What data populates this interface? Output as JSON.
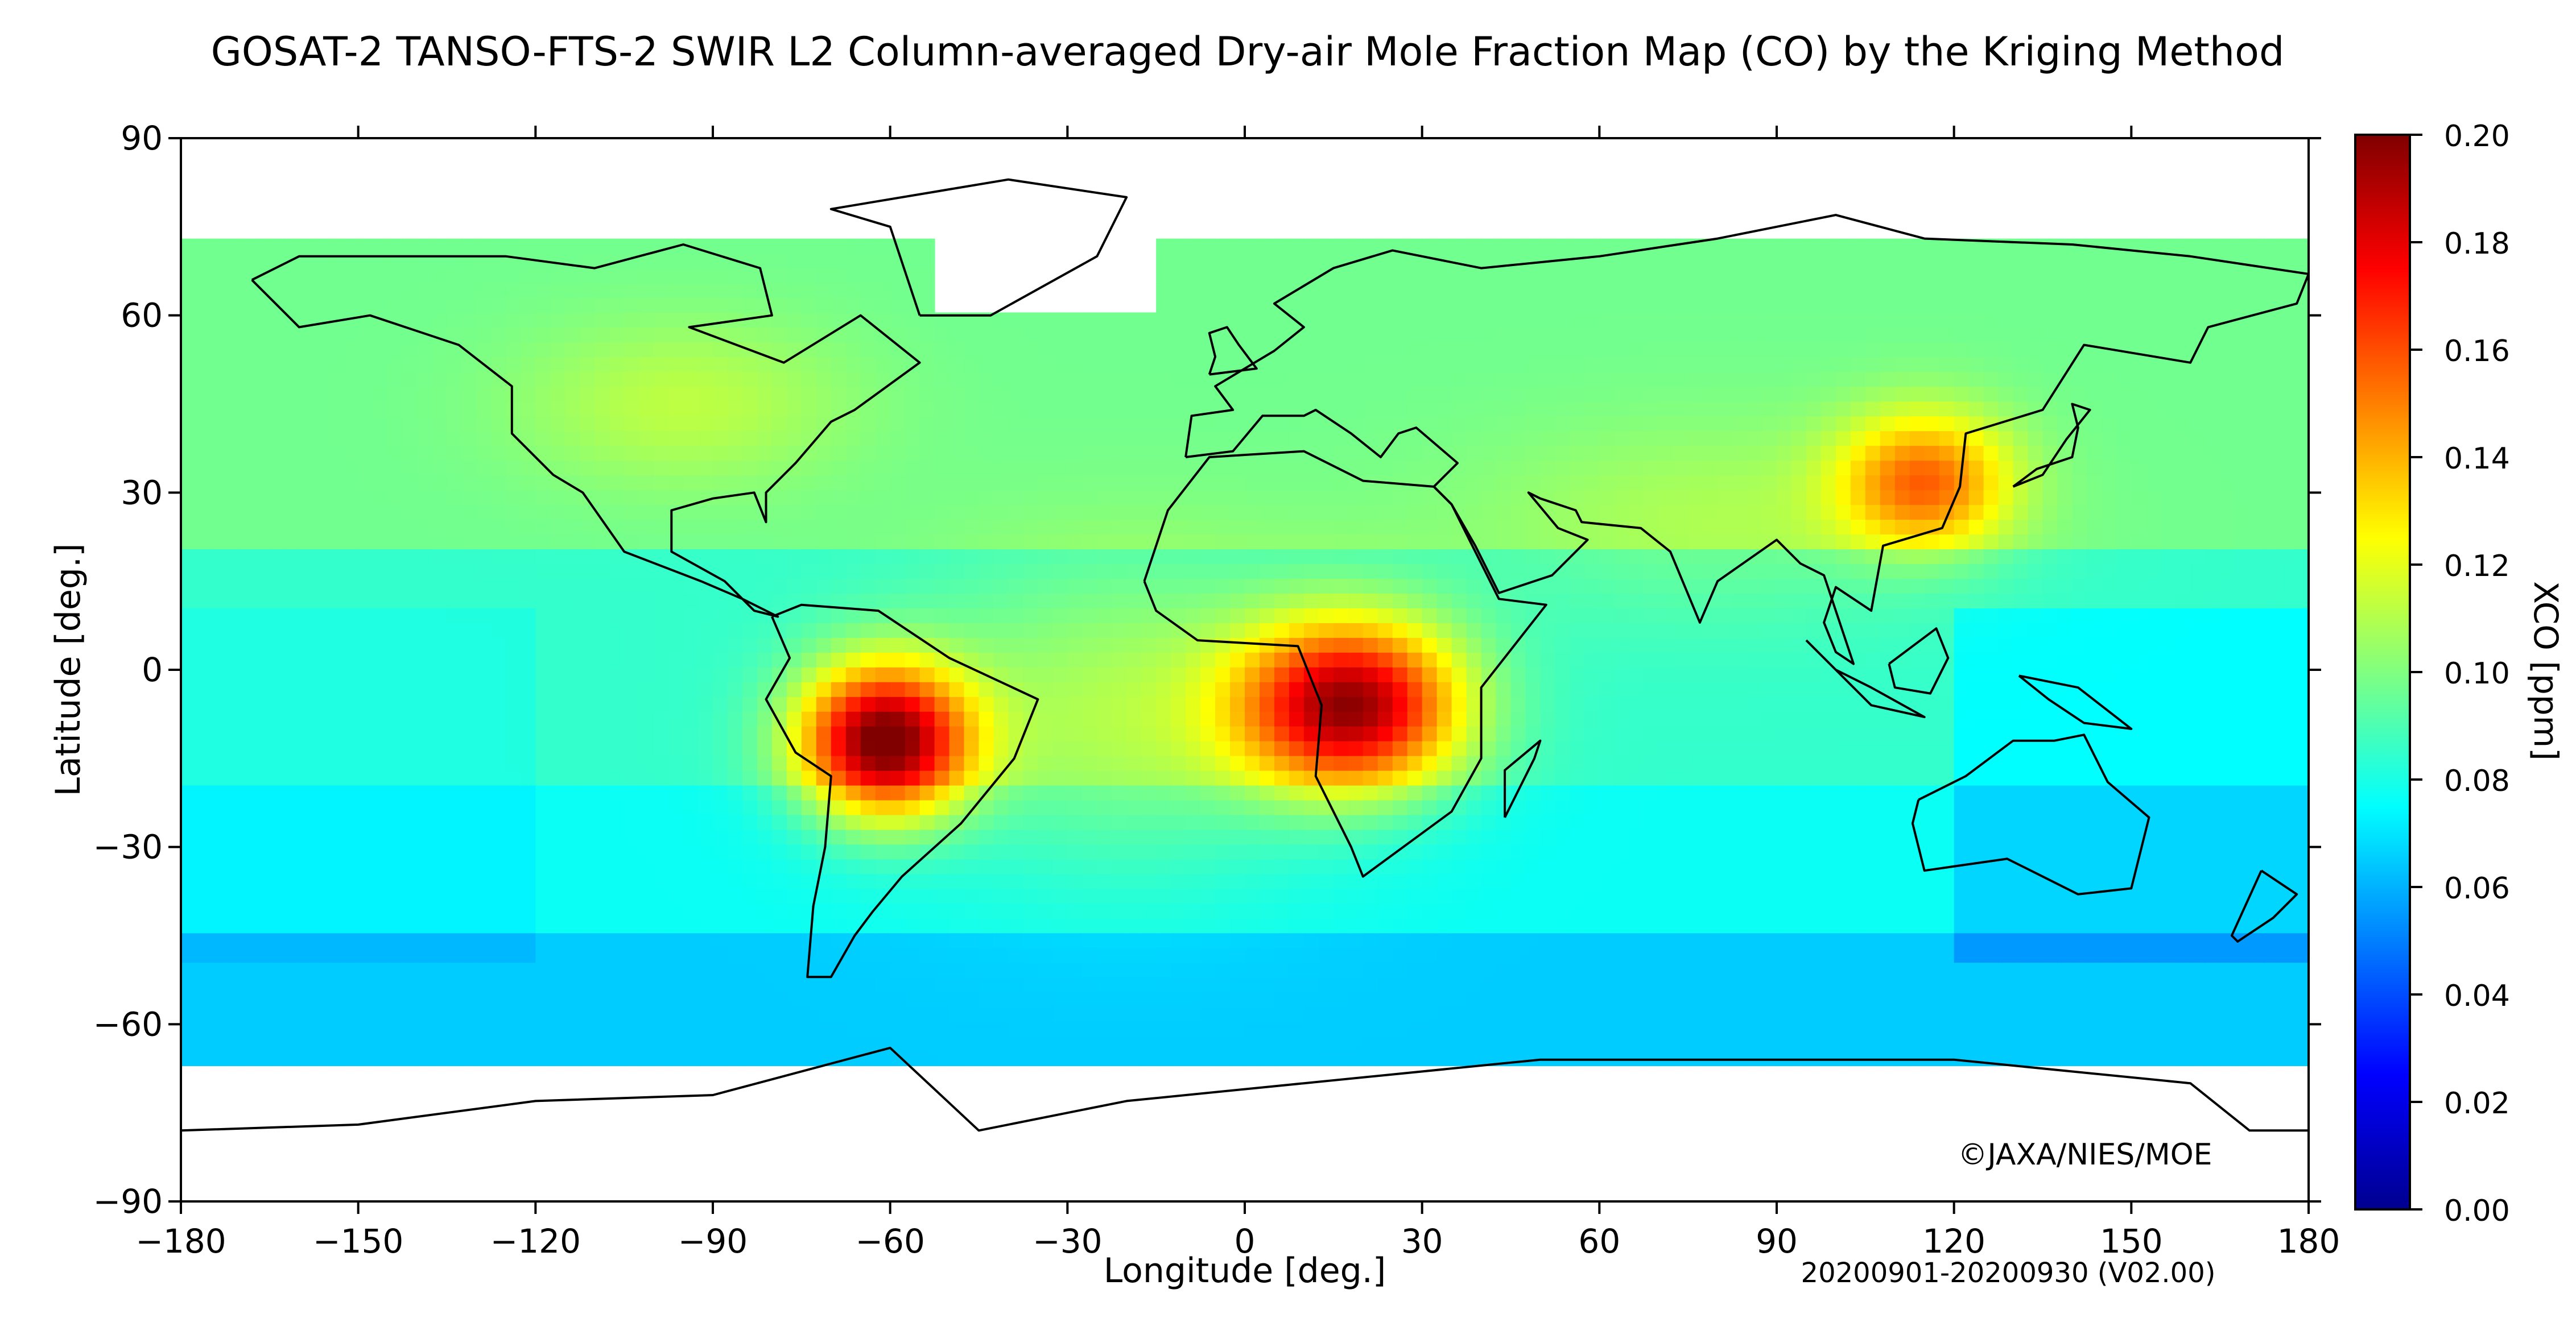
{
  "title": "GOSAT-2 TANSO-FTS-2 SWIR L2 Column-averaged Dry-air Mole Fraction Map (CO) by the Kriging Method",
  "map": {
    "xlabel": "Longitude [deg.]",
    "ylabel": "Latitude [deg.]",
    "x_range": [
      -180,
      180
    ],
    "y_range": [
      -90,
      90
    ],
    "x_ticks": [
      "−180",
      "−150",
      "−120",
      "−90",
      "−60",
      "−30",
      "0",
      "30",
      "60",
      "90",
      "120",
      "150",
      "180"
    ],
    "y_ticks": [
      "90",
      "60",
      "30",
      "0",
      "−30",
      "−60",
      "−90"
    ],
    "copyright": "©JAXA/NIES/MOE",
    "period": "20200901-20200930 (V02.00)",
    "data_lat_range": [
      -67,
      72
    ],
    "hotspots": [
      {
        "region": "South America (Amazon)",
        "lon": -61,
        "lat": -12,
        "value": 0.2
      },
      {
        "region": "Central Africa",
        "lon": 18,
        "lat": -6,
        "value": 0.19
      },
      {
        "region": "Eastern China",
        "lon": 115,
        "lat": 32,
        "value": 0.15
      }
    ]
  },
  "colorbar": {
    "label": "XCO [ppm]",
    "ticks": [
      "0.20",
      "0.18",
      "0.16",
      "0.14",
      "0.12",
      "0.10",
      "0.08",
      "0.06",
      "0.04",
      "0.02",
      "0.00"
    ],
    "range": [
      0.0,
      0.2
    ],
    "colormap": "jet",
    "colors": [
      "#00008f",
      "#0000ff",
      "#0080ff",
      "#00ffff",
      "#80ff80",
      "#ffff00",
      "#ff8000",
      "#ff0000",
      "#800000"
    ]
  }
}
